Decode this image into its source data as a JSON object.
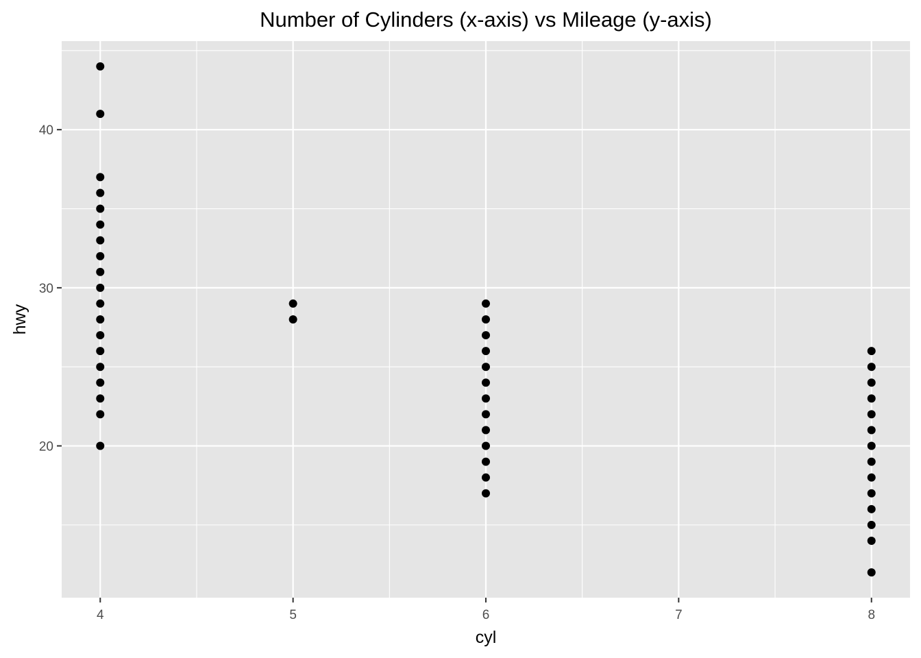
{
  "chart_data": {
    "type": "scatter",
    "title": "Number of Cylinders (x-axis) vs Mileage (y-axis)",
    "xlabel": "cyl",
    "ylabel": "hwy",
    "xlim": [
      3.8,
      8.2
    ],
    "ylim": [
      10.4,
      45.6
    ],
    "x_ticks": [
      4,
      5,
      6,
      7,
      8
    ],
    "x_tick_labels": [
      "4",
      "5",
      "6",
      "7",
      "8"
    ],
    "y_ticks": [
      20,
      30,
      40
    ],
    "y_tick_labels": [
      "20",
      "30",
      "40"
    ],
    "grid": true,
    "panel_background": "#e5e5e5",
    "grid_color": "#ffffff",
    "point_color": "#000000",
    "series": [
      {
        "points": [
          {
            "x": 4,
            "y": 44
          },
          {
            "x": 4,
            "y": 41
          },
          {
            "x": 4,
            "y": 37
          },
          {
            "x": 4,
            "y": 36
          },
          {
            "x": 4,
            "y": 35
          },
          {
            "x": 4,
            "y": 34
          },
          {
            "x": 4,
            "y": 33
          },
          {
            "x": 4,
            "y": 32
          },
          {
            "x": 4,
            "y": 31
          },
          {
            "x": 4,
            "y": 30
          },
          {
            "x": 4,
            "y": 29
          },
          {
            "x": 4,
            "y": 28
          },
          {
            "x": 4,
            "y": 27
          },
          {
            "x": 4,
            "y": 26
          },
          {
            "x": 4,
            "y": 25
          },
          {
            "x": 4,
            "y": 24
          },
          {
            "x": 4,
            "y": 23
          },
          {
            "x": 4,
            "y": 22
          },
          {
            "x": 4,
            "y": 20
          },
          {
            "x": 5,
            "y": 29
          },
          {
            "x": 5,
            "y": 28
          },
          {
            "x": 6,
            "y": 29
          },
          {
            "x": 6,
            "y": 28
          },
          {
            "x": 6,
            "y": 27
          },
          {
            "x": 6,
            "y": 26
          },
          {
            "x": 6,
            "y": 25
          },
          {
            "x": 6,
            "y": 24
          },
          {
            "x": 6,
            "y": 23
          },
          {
            "x": 6,
            "y": 22
          },
          {
            "x": 6,
            "y": 21
          },
          {
            "x": 6,
            "y": 20
          },
          {
            "x": 6,
            "y": 19
          },
          {
            "x": 6,
            "y": 18
          },
          {
            "x": 6,
            "y": 17
          },
          {
            "x": 8,
            "y": 26
          },
          {
            "x": 8,
            "y": 25
          },
          {
            "x": 8,
            "y": 24
          },
          {
            "x": 8,
            "y": 23
          },
          {
            "x": 8,
            "y": 22
          },
          {
            "x": 8,
            "y": 21
          },
          {
            "x": 8,
            "y": 20
          },
          {
            "x": 8,
            "y": 19
          },
          {
            "x": 8,
            "y": 18
          },
          {
            "x": 8,
            "y": 17
          },
          {
            "x": 8,
            "y": 16
          },
          {
            "x": 8,
            "y": 15
          },
          {
            "x": 8,
            "y": 14
          },
          {
            "x": 8,
            "y": 12
          }
        ]
      }
    ]
  }
}
